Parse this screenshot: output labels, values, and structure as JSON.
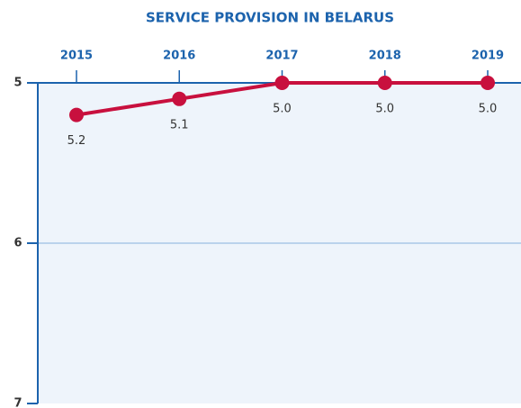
{
  "chart_data": {
    "type": "line",
    "title": "SERVICE PROVISION IN BELARUS",
    "categories": [
      "2015",
      "2016",
      "2017",
      "2018",
      "2019"
    ],
    "series": [
      {
        "name": null,
        "color": "#c8103e",
        "values": [
          5.2,
          5.1,
          5,
          5,
          5
        ],
        "value_labels": [
          "5.2",
          "5.1",
          "5.0",
          "5.0",
          "5.0"
        ]
      }
    ],
    "ylim": [
      5,
      7
    ],
    "yticks": [
      5,
      6,
      7
    ],
    "invert_y": true,
    "x_axis_position": "top",
    "grid": true
  }
}
